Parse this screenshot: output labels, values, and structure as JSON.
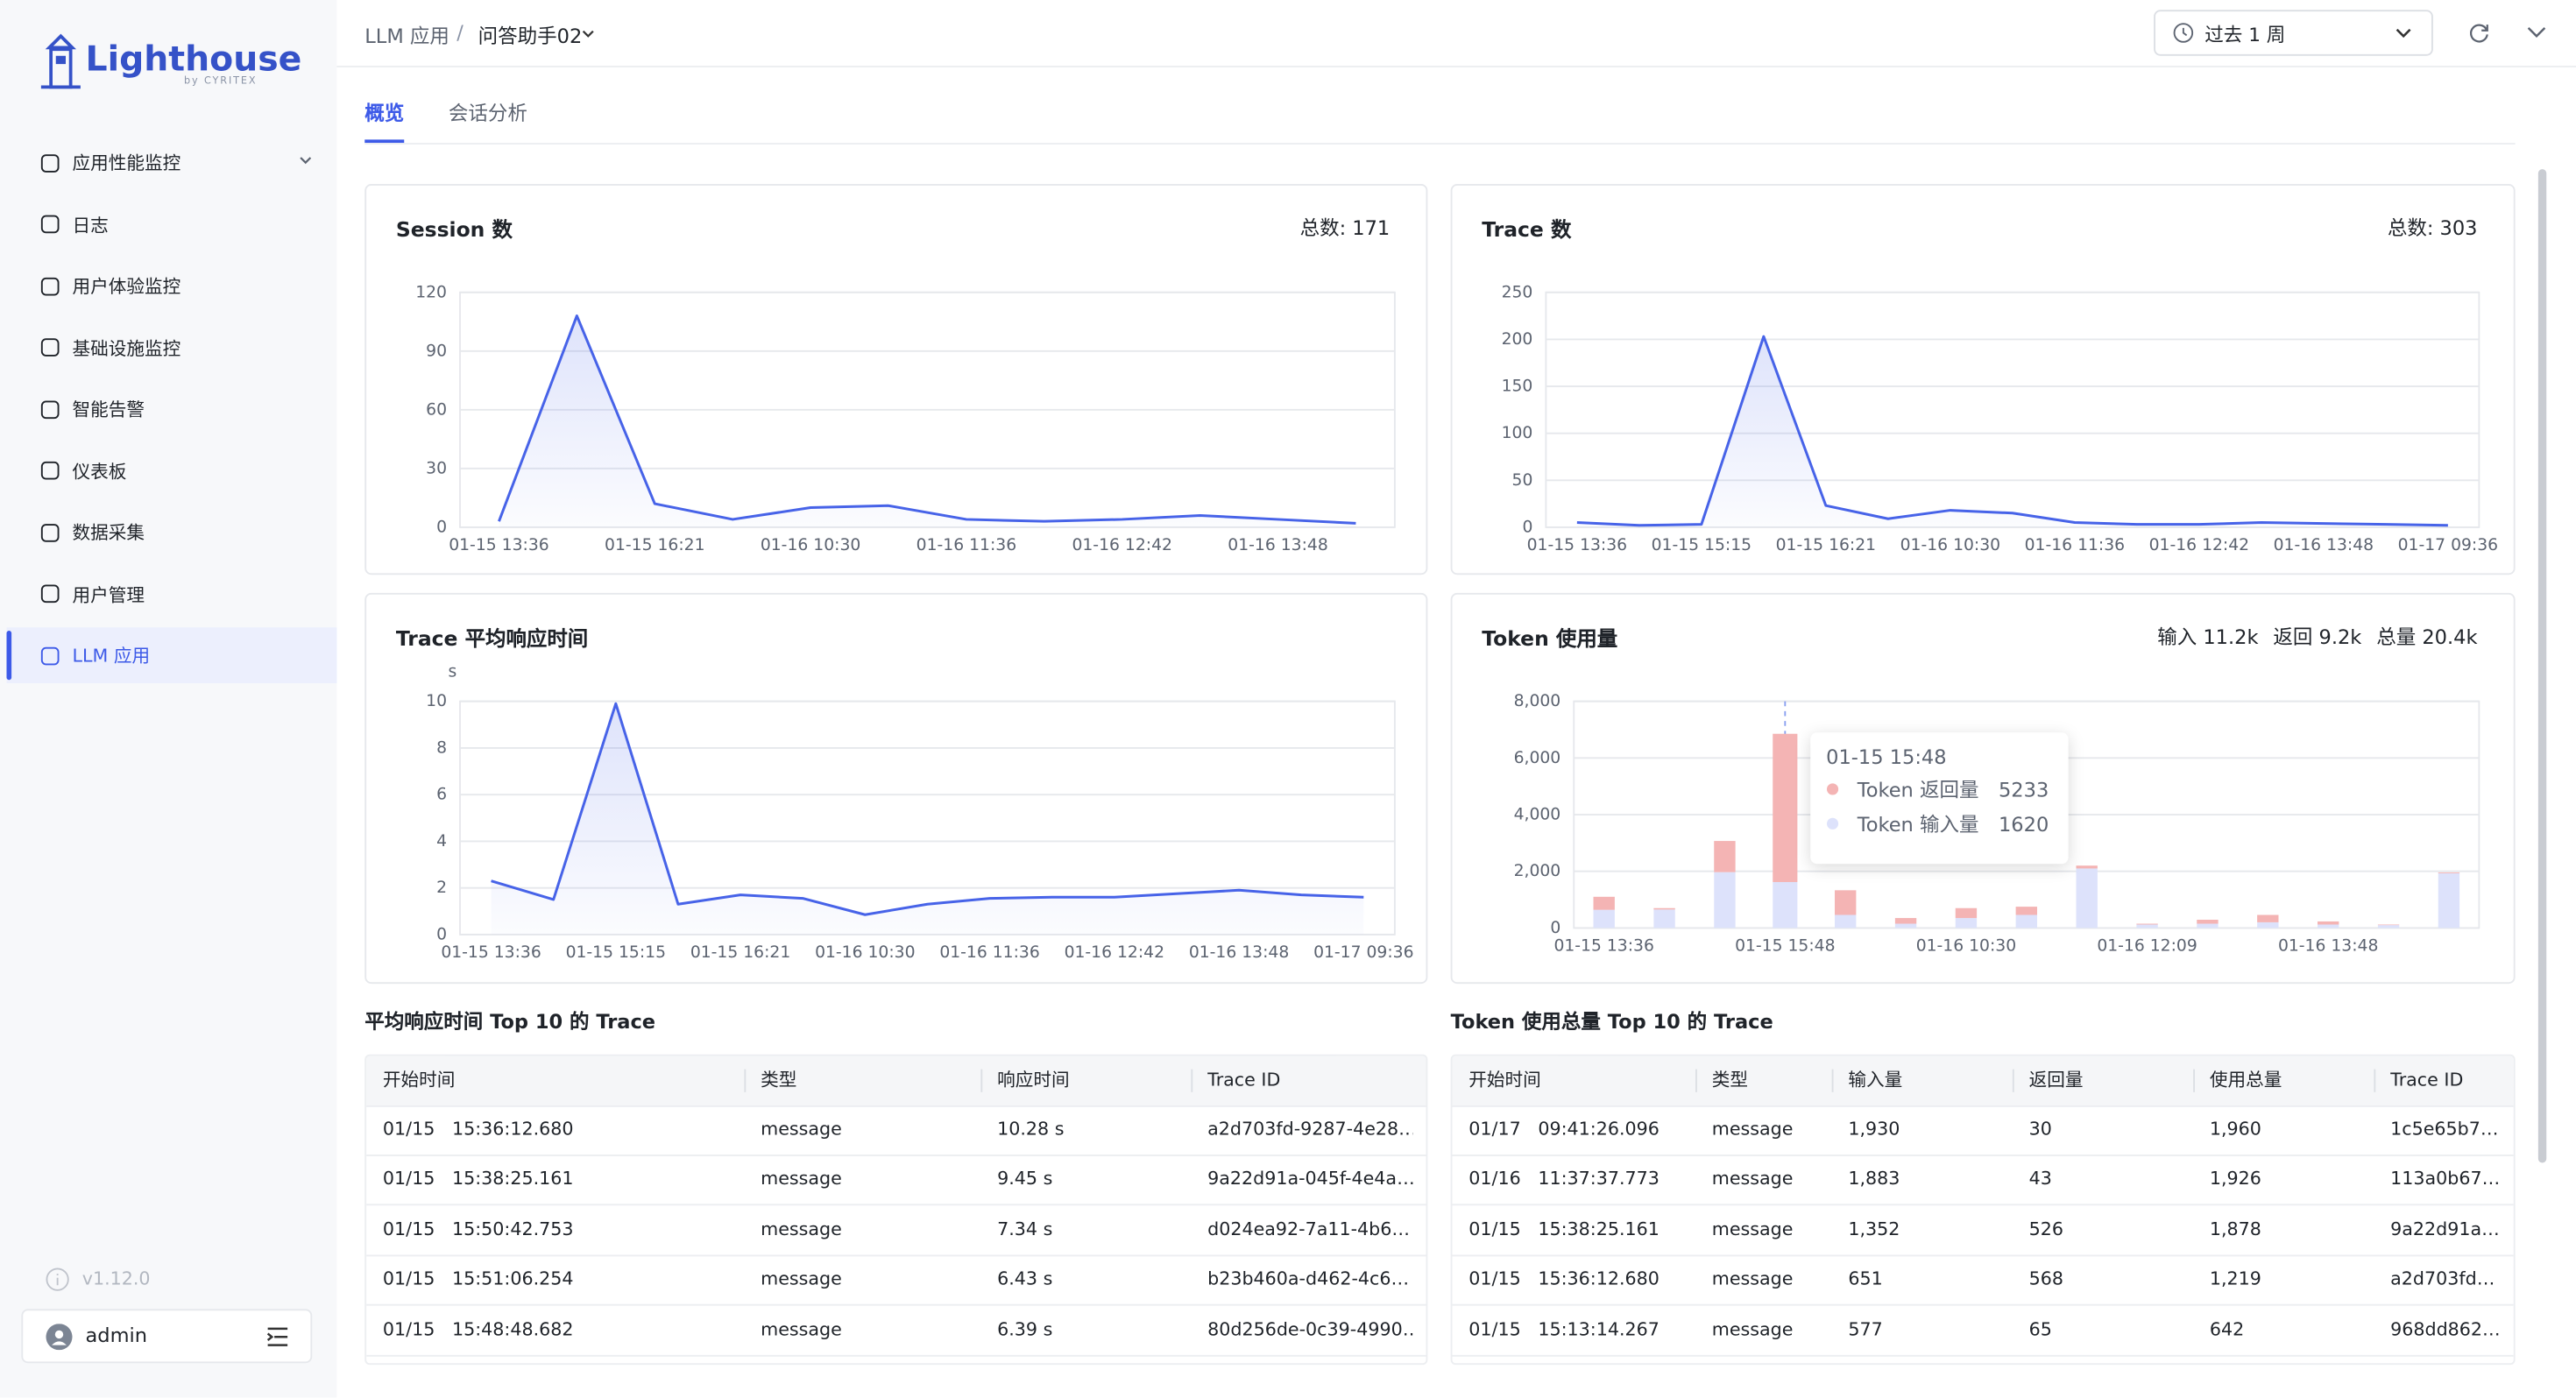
{
  "sidebar": {
    "logo": "Lighthouse",
    "logo_sub": "by CYRITEX",
    "menu": [
      "应用性能监控",
      "日志",
      "用户体验监控",
      "基础设施监控",
      "智能告警",
      "仪表板",
      "数据采集",
      "用户管理",
      "LLM 应用"
    ],
    "version": "v1.12.0",
    "user": "admin"
  },
  "header": {
    "breadcrumb": [
      "LLM 应用",
      "/",
      "问答助手02"
    ],
    "time_range": "过去 1 周"
  },
  "tabs": [
    "概览",
    "会话分析"
  ],
  "chart_data": [
    {
      "type": "line",
      "title": "Session 数",
      "summary": [
        "总数: 171"
      ],
      "color": "#4763e8",
      "categories": [
        "01-15 13:36",
        null,
        "01-15 16:21",
        null,
        "01-16 10:30",
        null,
        "01-16 11:36",
        null,
        "01-16 12:42",
        null,
        "01-16 13:48",
        null
      ],
      "values": [
        3,
        108,
        12,
        4,
        10,
        11,
        4,
        3,
        4,
        6,
        4,
        2
      ],
      "ylim": [
        0,
        120
      ],
      "yticks": [
        0,
        30,
        60,
        90,
        120
      ],
      "grid": true
    },
    {
      "type": "line",
      "title": "Trace 数",
      "summary": [
        "总数: 303"
      ],
      "color": "#4763e8",
      "categories": [
        "01-15 13:36",
        null,
        "01-15 15:15",
        null,
        "01-15 16:21",
        null,
        "01-16 10:30",
        null,
        "01-16 11:36",
        null,
        "01-16 12:42",
        null,
        "01-16 13:48",
        null,
        "01-17 09:36"
      ],
      "values": [
        5,
        2,
        3,
        203,
        23,
        9,
        18,
        15,
        5,
        3,
        3,
        5,
        4,
        3,
        2
      ],
      "ylim": [
        0,
        250
      ],
      "yticks": [
        0,
        50,
        100,
        150,
        200,
        250
      ],
      "grid": true
    },
    {
      "type": "line",
      "title": "Trace 平均响应时间",
      "summary": [],
      "y_unit": "s",
      "color": "#4763e8",
      "categories": [
        "01-15 13:36",
        null,
        "01-15 15:15",
        null,
        "01-15 16:21",
        null,
        "01-16 10:30",
        null,
        "01-16 11:36",
        null,
        "01-16 12:42",
        null,
        "01-16 13:48",
        null,
        "01-17 09:36"
      ],
      "values": [
        2.3,
        1.5,
        9.9,
        1.3,
        1.7,
        1.55,
        0.85,
        1.3,
        1.55,
        1.6,
        1.6,
        1.75,
        1.9,
        1.7,
        1.6
      ],
      "ylim": [
        0,
        10
      ],
      "yticks": [
        0,
        2,
        4,
        6,
        8,
        10
      ],
      "grid": true
    },
    {
      "type": "stacked_bar",
      "title": "Token 使用量",
      "summary": [
        "输入 11.2k",
        "返回 9.2k",
        "总量 20.4k"
      ],
      "categories": [
        "01-15 13:36",
        null,
        null,
        "01-15 15:48",
        null,
        null,
        "01-16 10:30",
        null,
        null,
        "01-16 12:09",
        null,
        null,
        "01-16 13:48",
        null,
        null
      ],
      "series": [
        {
          "name": "Token 返回量",
          "color": "#f4b4b4",
          "values": [
            460,
            50,
            1100,
            5233,
            870,
            200,
            350,
            290,
            100,
            30,
            140,
            260,
            110,
            20,
            30
          ]
        },
        {
          "name": "Token 输入量",
          "color": "#dde2fb",
          "values": [
            640,
            650,
            1970,
            1620,
            460,
            150,
            350,
            460,
            2100,
            120,
            150,
            200,
            120,
            100,
            1930
          ]
        }
      ],
      "ylim": [
        0,
        8000
      ],
      "yticks": [
        0,
        {
          "value": 2000,
          "label": "2,000"
        },
        {
          "value": 4000,
          "label": "4,000"
        },
        {
          "value": 6000,
          "label": "6,000"
        },
        {
          "value": 8000,
          "label": "8,000"
        }
      ],
      "grid": true
    }
  ],
  "tables": [
    {
      "title": "平均响应时间 Top 10 的 Trace",
      "columns": [
        "开始时间",
        "类型",
        "响应时间",
        "Trace ID"
      ],
      "rows": [
        [
          "01/15   15:36:12.680",
          "message",
          "10.28 s",
          "a2d703fd-9287-4e28…"
        ],
        [
          "01/15   15:38:25.161",
          "message",
          "9.45 s",
          "9a22d91a-045f-4e4a…"
        ],
        [
          "01/15   15:50:42.753",
          "message",
          "7.34 s",
          "d024ea92-7a11-4b6…"
        ],
        [
          "01/15   15:51:06.254",
          "message",
          "6.43 s",
          "b23b460a-d462-4c6…"
        ],
        [
          "01/15   15:48:48.682",
          "message",
          "6.39 s",
          "80d256de-0c39-4990…"
        ]
      ]
    },
    {
      "title": "Token 使用总量 Top 10 的 Trace",
      "columns": [
        "开始时间",
        "类型",
        "输入量",
        "返回量",
        "使用总量",
        "Trace ID"
      ],
      "rows": [
        [
          "01/17   09:41:26.096",
          "message",
          "1,930",
          "30",
          "1,960",
          "1c5e65b7…"
        ],
        [
          "01/16   11:37:37.773",
          "message",
          "1,883",
          "43",
          "1,926",
          "113a0b67…"
        ],
        [
          "01/15   15:38:25.161",
          "message",
          "1,352",
          "526",
          "1,878",
          "9a22d91a…"
        ],
        [
          "01/15   15:36:12.680",
          "message",
          "651",
          "568",
          "1,219",
          "a2d703fd…"
        ],
        [
          "01/15   15:13:14.267",
          "message",
          "577",
          "65",
          "642",
          "968dd862…"
        ]
      ]
    }
  ]
}
